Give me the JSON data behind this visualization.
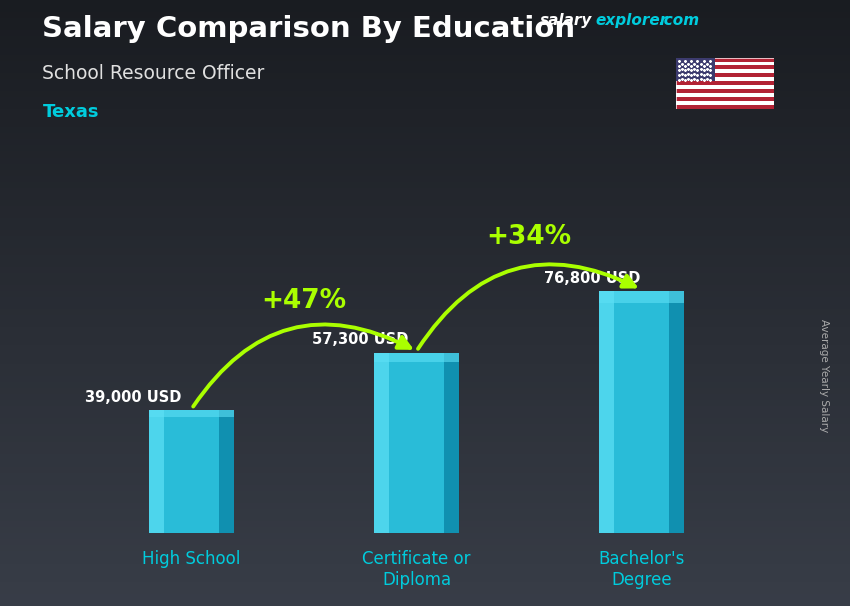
{
  "title_line1": "Salary Comparison By Education",
  "subtitle": "School Resource Officer",
  "location": "Texas",
  "ylabel": "Average Yearly Salary",
  "categories": [
    "High School",
    "Certificate or\nDiploma",
    "Bachelor's\nDegree"
  ],
  "values": [
    39000,
    57300,
    76800
  ],
  "labels": [
    "39,000 USD",
    "57,300 USD",
    "76,800 USD"
  ],
  "pct_labels": [
    "+47%",
    "+34%"
  ],
  "bar_color_face": "#29bcd8",
  "bar_color_light": "#5de0f5",
  "bar_color_dark": "#1090b0",
  "bar_color_right": "#0e7a96",
  "bg_top": "#1a1a2e",
  "bg_mid": "#2a2a3a",
  "bg_bot": "#3a3a3a",
  "title_color": "#ffffff",
  "subtitle_color": "#e0e0e0",
  "location_color": "#00ccdd",
  "label_color": "#ffffff",
  "pct_color": "#aaff00",
  "arrow_color": "#aaff00",
  "x_label_color": "#00ccdd",
  "watermark_salary_color": "#ffffff",
  "watermark_explorer_color": "#00ccdd",
  "watermark_com_color": "#ffffff",
  "ylabel_color": "#aaaaaa",
  "bar_width": 0.38,
  "bar_positions": [
    0,
    1,
    2
  ],
  "ylim": [
    0,
    100000
  ],
  "figsize": [
    8.5,
    6.06
  ],
  "dpi": 100
}
